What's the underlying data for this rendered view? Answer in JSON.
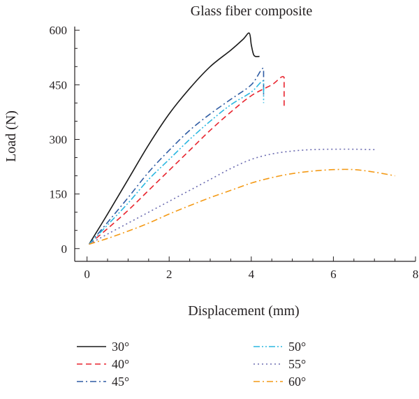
{
  "chart_data": {
    "type": "line",
    "title": "Glass fiber composite",
    "xlabel": "Displacement (mm)",
    "ylabel": "Load (N)",
    "xlim": [
      -0.3,
      8
    ],
    "ylim": [
      -35,
      610
    ],
    "xticks": [
      0,
      2,
      4,
      6,
      8
    ],
    "yticks": [
      0,
      150,
      300,
      450,
      600
    ],
    "grid": false,
    "legend_position": "bottom",
    "series": [
      {
        "name": "30°",
        "color": "#1a1a1a",
        "dash": "solid",
        "points": [
          [
            0.05,
            12
          ],
          [
            0.5,
            95
          ],
          [
            1.0,
            190
          ],
          [
            1.5,
            285
          ],
          [
            2.0,
            370
          ],
          [
            2.5,
            440
          ],
          [
            3.0,
            500
          ],
          [
            3.5,
            545
          ],
          [
            3.8,
            575
          ],
          [
            3.95,
            592
          ],
          [
            4.0,
            560
          ],
          [
            4.05,
            535
          ],
          [
            4.1,
            528
          ],
          [
            4.2,
            528
          ]
        ]
      },
      {
        "name": "40°",
        "color": "#e8242e",
        "dash": "dashed",
        "points": [
          [
            0.05,
            12
          ],
          [
            0.5,
            55
          ],
          [
            1.0,
            105
          ],
          [
            1.5,
            160
          ],
          [
            2.0,
            215
          ],
          [
            2.5,
            270
          ],
          [
            3.0,
            325
          ],
          [
            3.5,
            375
          ],
          [
            4.0,
            420
          ],
          [
            4.5,
            450
          ],
          [
            4.8,
            470
          ],
          [
            4.8,
            390
          ]
        ]
      },
      {
        "name": "45°",
        "color": "#2f5ca3",
        "dash": "dashdot",
        "points": [
          [
            0.05,
            12
          ],
          [
            0.5,
            72
          ],
          [
            1.0,
            140
          ],
          [
            1.5,
            210
          ],
          [
            2.0,
            270
          ],
          [
            2.5,
            325
          ],
          [
            3.0,
            370
          ],
          [
            3.5,
            410
          ],
          [
            4.0,
            450
          ],
          [
            4.3,
            495
          ],
          [
            4.3,
            420
          ]
        ]
      },
      {
        "name": "50°",
        "color": "#2bb7e0",
        "dash": "dashdotdot",
        "points": [
          [
            0.05,
            12
          ],
          [
            0.5,
            65
          ],
          [
            1.0,
            125
          ],
          [
            1.5,
            190
          ],
          [
            2.0,
            245
          ],
          [
            2.5,
            300
          ],
          [
            3.0,
            350
          ],
          [
            3.5,
            395
          ],
          [
            4.0,
            430
          ],
          [
            4.3,
            460
          ],
          [
            4.3,
            400
          ]
        ]
      },
      {
        "name": "55°",
        "color": "#6b6bb0",
        "dash": "dotted",
        "points": [
          [
            0.05,
            12
          ],
          [
            0.5,
            40
          ],
          [
            1.0,
            70
          ],
          [
            1.5,
            100
          ],
          [
            2.0,
            130
          ],
          [
            2.5,
            160
          ],
          [
            3.0,
            190
          ],
          [
            3.5,
            220
          ],
          [
            4.0,
            245
          ],
          [
            4.5,
            260
          ],
          [
            5.0,
            268
          ],
          [
            5.5,
            272
          ],
          [
            6.0,
            273
          ],
          [
            6.5,
            273
          ],
          [
            7.0,
            272
          ]
        ]
      },
      {
        "name": "60°",
        "color": "#f49a16",
        "dash": "dashdot",
        "points": [
          [
            0.05,
            12
          ],
          [
            0.5,
            28
          ],
          [
            1.0,
            48
          ],
          [
            1.5,
            70
          ],
          [
            2.0,
            95
          ],
          [
            2.5,
            118
          ],
          [
            3.0,
            140
          ],
          [
            3.5,
            160
          ],
          [
            4.0,
            180
          ],
          [
            4.5,
            195
          ],
          [
            5.0,
            206
          ],
          [
            5.5,
            213
          ],
          [
            6.0,
            217
          ],
          [
            6.5,
            217
          ],
          [
            7.0,
            210
          ],
          [
            7.5,
            200
          ]
        ]
      }
    ]
  }
}
